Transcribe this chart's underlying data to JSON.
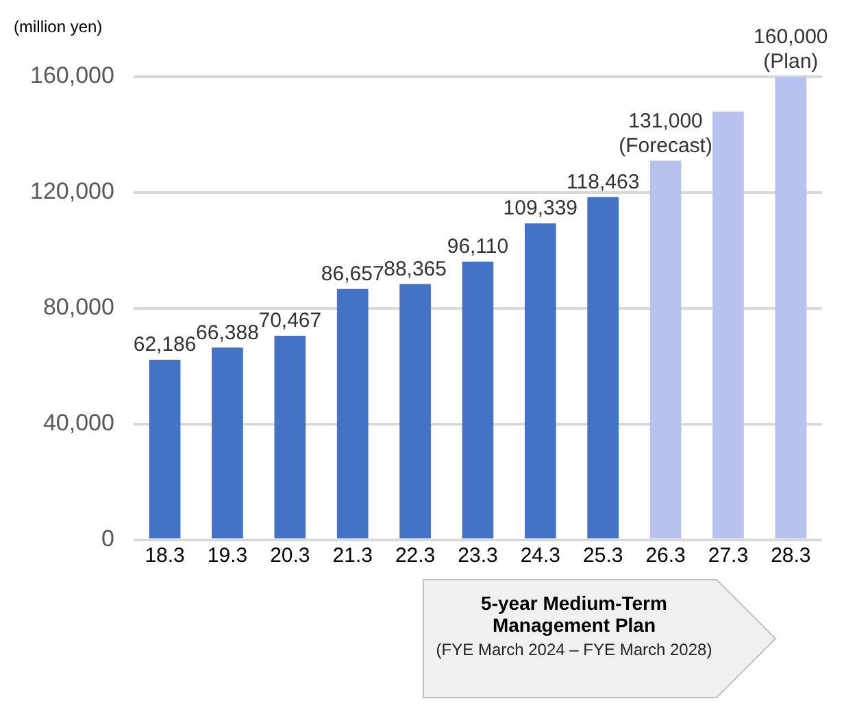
{
  "chart_data": {
    "type": "bar",
    "ylabel": "(million yen)",
    "categories": [
      "18.3",
      "19.3",
      "20.3",
      "21.3",
      "22.3",
      "23.3",
      "24.3",
      "25.3",
      "26.3",
      "27.3",
      "28.3"
    ],
    "values": [
      62186,
      66388,
      70467,
      86657,
      88365,
      96110,
      109339,
      118463,
      131000,
      148000,
      160000
    ],
    "colors": [
      "#4472c4",
      "#4472c4",
      "#4472c4",
      "#4472c4",
      "#4472c4",
      "#4472c4",
      "#4472c4",
      "#4472c4",
      "#b7c3ee",
      "#b7c3ee",
      "#b7c3ee"
    ],
    "value_labels": [
      "62,186",
      "66,388",
      "70,467",
      "86,657",
      "88,365",
      "96,110",
      "109,339",
      "118,463",
      "131,000",
      null,
      "160,000"
    ],
    "ylim": [
      0,
      160000
    ],
    "yticks": [
      0,
      {
        "value": 40000,
        "label": "40,000"
      },
      {
        "value": 80000,
        "label": "80,000"
      },
      {
        "value": 120000,
        "label": "120,000"
      },
      {
        "value": 160000,
        "label": "160,000"
      }
    ],
    "grid": "y",
    "legend": false,
    "annotations": [
      {
        "text": "(Forecast)",
        "x": "26.3",
        "y": 131000
      },
      {
        "text": "(Plan)",
        "x": "28.3",
        "y": 160000
      },
      "5-year Medium-Term Management Plan",
      "(FYE March 2024 – FYE March 2028)"
    ]
  }
}
